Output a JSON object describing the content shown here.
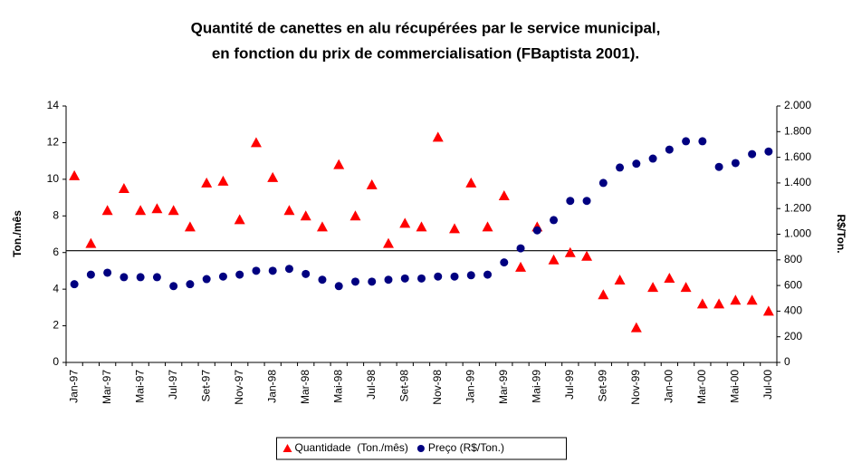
{
  "chart_data": {
    "type": "scatter",
    "title": [
      "Quantité de canettes en alu récupérées par le service municipal,",
      "en fonction du prix de commercialisation (FBaptista 2001)."
    ],
    "ylabel": "Ton./mês",
    "y2label": "R$/Ton.",
    "categories": [
      "Jan-97",
      null,
      "Mar-97",
      null,
      "Mai-97",
      null,
      "Jul-97",
      null,
      "Set-97",
      null,
      "Nov-97",
      null,
      "Jan-98",
      null,
      "Mar-98",
      null,
      "Mai-98",
      null,
      "Jul-98",
      null,
      "Set-98",
      null,
      "Nov-98",
      null,
      "Jan-99",
      null,
      "Mar-99",
      null,
      "Mai-99",
      null,
      "Jul-99",
      null,
      "Set-99",
      null,
      "Nov-99",
      null,
      "Jan-00",
      null,
      "Mar-00",
      null,
      "Mai-00",
      null,
      "Jul-00"
    ],
    "series": [
      {
        "name": "Quantidade  (Ton./mês)",
        "color": "#ff0000",
        "marker": "triangle",
        "axis": "y",
        "values": [
          10.2,
          6.5,
          8.3,
          9.5,
          8.3,
          8.4,
          8.3,
          7.4,
          9.8,
          9.9,
          7.8,
          12.0,
          10.1,
          8.3,
          8.0,
          7.4,
          10.8,
          8.0,
          9.7,
          6.5,
          7.6,
          7.4,
          12.3,
          7.3,
          9.8,
          7.4,
          9.1,
          5.2,
          7.4,
          5.6,
          6.0,
          5.8,
          3.7,
          4.5,
          1.9,
          4.1,
          4.6,
          4.1,
          3.2,
          3.2,
          3.4,
          3.4,
          2.8
        ]
      },
      {
        "name": "Preço (R$/Ton.)",
        "color": "#000080",
        "marker": "circle",
        "axis": "y2",
        "values": [
          610,
          685,
          700,
          665,
          665,
          665,
          595,
          610,
          650,
          670,
          685,
          715,
          715,
          730,
          690,
          645,
          595,
          630,
          630,
          645,
          655,
          655,
          670,
          670,
          680,
          685,
          780,
          890,
          1030,
          1110,
          1260,
          1260,
          1400,
          1520,
          1550,
          1590,
          1660,
          1725,
          1725,
          1525,
          1555,
          1625,
          1645
        ]
      }
    ],
    "ylim": [
      0,
      14
    ],
    "yticks": [
      0,
      2,
      4,
      6,
      8,
      10,
      12,
      14
    ],
    "y2lim": [
      0,
      2000
    ],
    "y2ticks": [
      0,
      200,
      400,
      600,
      800,
      {
        "value": 1000,
        "label": "1.000"
      },
      {
        "value": 1200,
        "label": "1.200"
      },
      {
        "value": 1400,
        "label": "1.400"
      },
      {
        "value": 1600,
        "label": "1.600"
      },
      {
        "value": 1800,
        "label": "1.800"
      },
      {
        "value": 2000,
        "label": "2.000"
      }
    ],
    "hline": 6.1,
    "legend": "bottom",
    "grid": false
  }
}
